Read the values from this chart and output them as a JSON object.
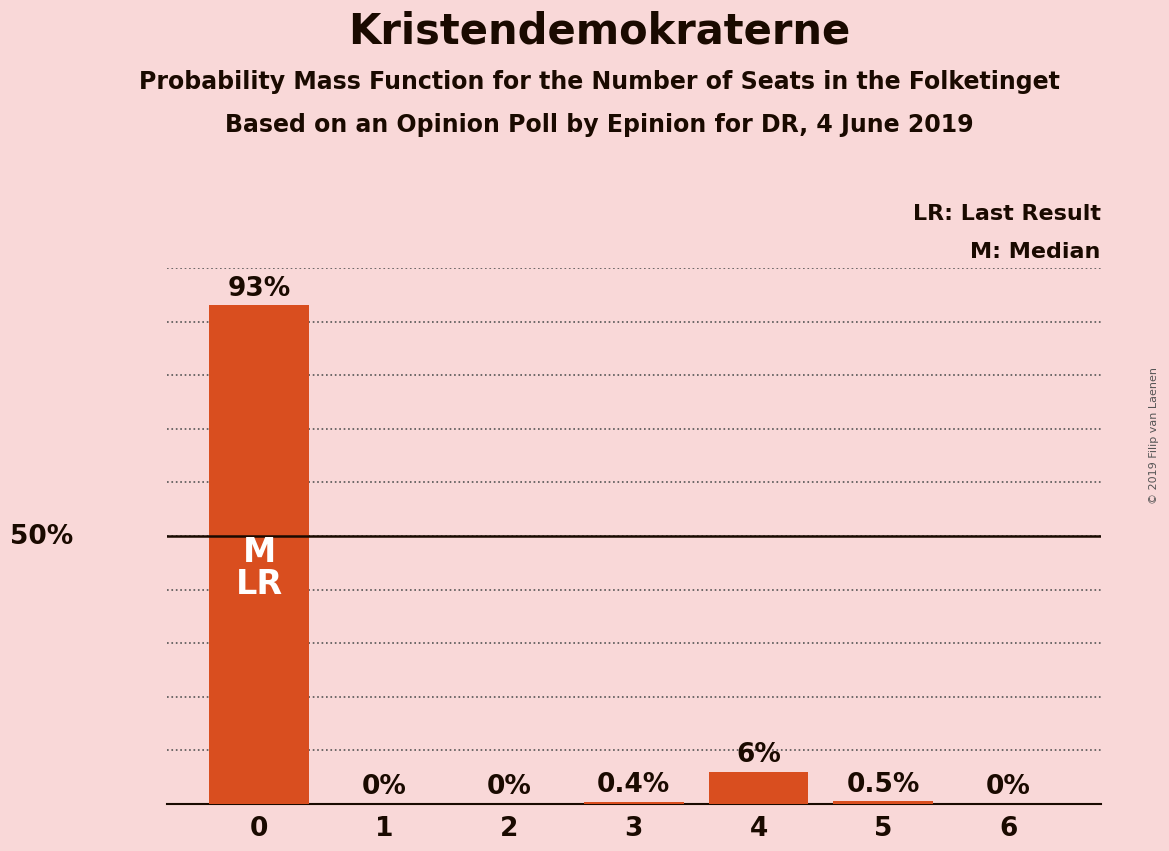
{
  "title": "Kristendemokraterne",
  "subtitle1": "Probability Mass Function for the Number of Seats in the Folketinget",
  "subtitle2": "Based on an Opinion Poll by Epinion for DR, 4 June 2019",
  "copyright": "© 2019 Filip van Laenen",
  "categories": [
    0,
    1,
    2,
    3,
    4,
    5,
    6
  ],
  "values": [
    0.93,
    0.0,
    0.0,
    0.004,
    0.06,
    0.005,
    0.0
  ],
  "labels": [
    "93%",
    "0%",
    "0%",
    "0.4%",
    "6%",
    "0.5%",
    "0%"
  ],
  "bar_color": "#d94e1f",
  "background_color": "#f9d8d8",
  "median_bar": 0,
  "last_result_bar": 0,
  "median_label": "M",
  "lr_label": "LR",
  "legend_lr": "LR: Last Result",
  "legend_m": "M: Median",
  "ylabel_50": "50%",
  "ylim": [
    0,
    1.0
  ],
  "fifty_pct_line": 0.5,
  "title_fontsize": 30,
  "subtitle_fontsize": 17,
  "tick_fontsize": 19,
  "bar_label_fontsize": 19,
  "legend_fontsize": 16,
  "fifty_label_fontsize": 19
}
